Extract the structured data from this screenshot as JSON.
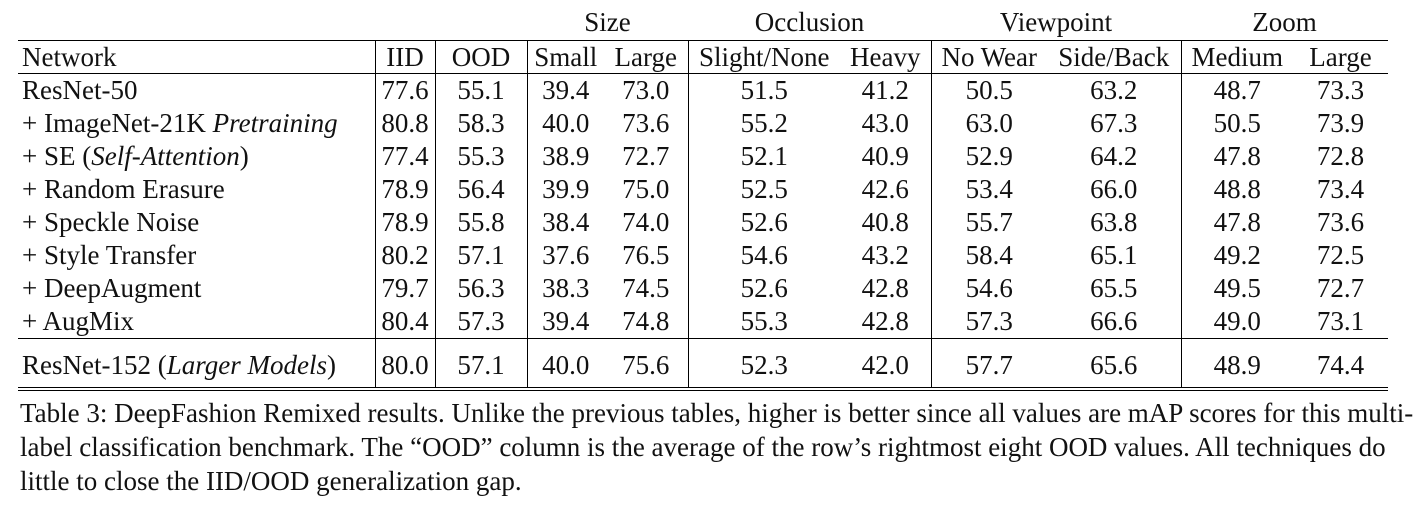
{
  "table": {
    "groups": [
      "Size",
      "Occlusion",
      "Viewpoint",
      "Zoom"
    ],
    "columns": [
      "Network",
      "IID",
      "OOD",
      "Small",
      "Large",
      "Slight/None",
      "Heavy",
      "No Wear",
      "Side/Back",
      "Medium",
      "Large"
    ],
    "rows": [
      {
        "label": {
          "text": "ResNet-50"
        },
        "cells": [
          "77.6",
          "55.1",
          "39.4",
          "73.0",
          "51.5",
          "41.2",
          "50.5",
          "63.2",
          "48.7",
          "73.3"
        ]
      },
      {
        "label": {
          "text": "+ ImageNet-21K ",
          "em": "Pretraining"
        },
        "cells": [
          "80.8",
          "58.3",
          "40.0",
          "73.6",
          "55.2",
          "43.0",
          "63.0",
          "67.3",
          "50.5",
          "73.9"
        ]
      },
      {
        "label": {
          "text": "+ SE (",
          "em": "Self-Attention",
          "tail": ")"
        },
        "cells": [
          "77.4",
          "55.3",
          "38.9",
          "72.7",
          "52.1",
          "40.9",
          "52.9",
          "64.2",
          "47.8",
          "72.8"
        ]
      },
      {
        "label": {
          "text": "+ Random Erasure"
        },
        "cells": [
          "78.9",
          "56.4",
          "39.9",
          "75.0",
          "52.5",
          "42.6",
          "53.4",
          "66.0",
          "48.8",
          "73.4"
        ]
      },
      {
        "label": {
          "text": "+ Speckle Noise"
        },
        "cells": [
          "78.9",
          "55.8",
          "38.4",
          "74.0",
          "52.6",
          "40.8",
          "55.7",
          "63.8",
          "47.8",
          "73.6"
        ]
      },
      {
        "label": {
          "text": "+ Style Transfer"
        },
        "cells": [
          "80.2",
          "57.1",
          "37.6",
          "76.5",
          "54.6",
          "43.2",
          "58.4",
          "65.1",
          "49.2",
          "72.5"
        ]
      },
      {
        "label": {
          "text": "+ DeepAugment"
        },
        "cells": [
          "79.7",
          "56.3",
          "38.3",
          "74.5",
          "52.6",
          "42.8",
          "54.6",
          "65.5",
          "49.5",
          "72.7"
        ]
      },
      {
        "label": {
          "text": "+ AugMix"
        },
        "cells": [
          "80.4",
          "57.3",
          "39.4",
          "74.8",
          "55.3",
          "42.8",
          "57.3",
          "66.6",
          "49.0",
          "73.1"
        ]
      }
    ],
    "footer_rows": [
      {
        "label": {
          "text": "ResNet-152 (",
          "em": "Larger Models",
          "tail": ")"
        },
        "cells": [
          "80.0",
          "57.1",
          "40.0",
          "75.6",
          "52.3",
          "42.0",
          "57.7",
          "65.6",
          "48.9",
          "74.4"
        ]
      }
    ],
    "caption": "Table 3: DeepFashion Remixed results. Unlike the previous tables, higher is better since all values are mAP scores for this multi-label classification benchmark. The “OOD” column is the average of the row’s rightmost eight OOD values. All techniques do little to close the IID/OOD generalization gap."
  }
}
